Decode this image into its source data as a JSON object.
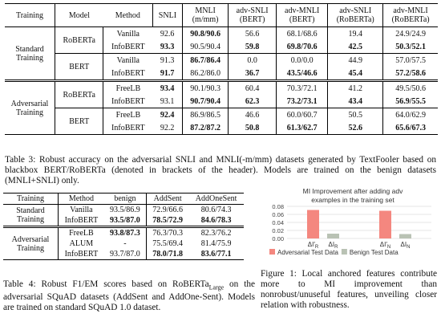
{
  "table3": {
    "headers": [
      [
        "Training"
      ],
      [
        "Model"
      ],
      [
        "Method"
      ],
      [
        "SNLI"
      ],
      [
        "MNLI",
        "(m/mm)"
      ],
      [
        "adv-SNLI",
        "(BERT)"
      ],
      [
        "adv-MNLI",
        "(BERT)"
      ],
      [
        "adv-SNLI",
        "(RoBERTa)"
      ],
      [
        "adv-MNLI",
        "(RoBERTa)"
      ]
    ],
    "groups": [
      {
        "training": "Standard Training",
        "subgroups": [
          {
            "model": "RoBERTa",
            "rows": [
              {
                "cells": [
                  "Vanilla",
                  "92.6",
                  "90.8/90.6",
                  "56.6",
                  "68.1/68.6",
                  "19.4",
                  "24.9/24.9"
                ],
                "bold": [
                  2
                ]
              },
              {
                "cells": [
                  "InfoBERT",
                  "93.3",
                  "90.5/90.4",
                  "59.8",
                  "69.8/70.6",
                  "42.5",
                  "50.3/52.1"
                ],
                "bold": [
                  1,
                  3,
                  4,
                  5,
                  6
                ]
              }
            ]
          },
          {
            "model": "BERT",
            "rows": [
              {
                "cells": [
                  "Vanilla",
                  "91.3",
                  "86.7/86.4",
                  "0.0",
                  "0.0/0.0",
                  "44.9",
                  "57.0/57.5"
                ],
                "bold": [
                  2
                ]
              },
              {
                "cells": [
                  "InfoBERT",
                  "91.7",
                  "86.2/86.0",
                  "36.7",
                  "43.5/46.6",
                  "45.4",
                  "57.2/58.6"
                ],
                "bold": [
                  1,
                  3,
                  4,
                  5,
                  6
                ]
              }
            ]
          }
        ]
      },
      {
        "training": "Adversarial Training",
        "subgroups": [
          {
            "model": "RoBERTa",
            "rows": [
              {
                "cells": [
                  "FreeLB",
                  "93.4",
                  "90.1/90.3",
                  "60.4",
                  "70.3/72.1",
                  "41.2",
                  "49.5/50.6"
                ],
                "bold": [
                  1
                ]
              },
              {
                "cells": [
                  "InfoBERT",
                  "93.1",
                  "90.7/90.4",
                  "62.3",
                  "73.2/73.1",
                  "43.4",
                  "56.9/55.5"
                ],
                "bold": [
                  2,
                  3,
                  4,
                  5,
                  6
                ]
              }
            ]
          },
          {
            "model": "BERT",
            "rows": [
              {
                "cells": [
                  "FreeLB",
                  "92.4",
                  "86.9/86.5",
                  "46.6",
                  "60.0/60.7",
                  "50.5",
                  "64.0/62.9"
                ],
                "bold": [
                  1
                ]
              },
              {
                "cells": [
                  "InfoBERT",
                  "92.2",
                  "87.2/87.2",
                  "50.8",
                  "61.3/62.7",
                  "52.6",
                  "65.6/67.3"
                ],
                "bold": [
                  2,
                  3,
                  4,
                  5,
                  6
                ]
              }
            ]
          }
        ]
      }
    ]
  },
  "caption3": "Table 3: Robust accuracy on the adversarial SNLI and MNLI(-m/mm) datasets generated by TextFooler based on blackbox BERT/RoBERTa (denoted in brackets of the header). Models are trained on the benign datasets (MNLI+SNLI) only.",
  "table4": {
    "headers": [
      "Training",
      "Method",
      "benign",
      "AddSent",
      "AddOneSent"
    ],
    "groups": [
      {
        "training": "Standard Training",
        "rows": [
          {
            "cells": [
              "Vanilla",
              "93.5/86.9",
              "72.9/66.6",
              "80.6/74.3"
            ],
            "bold": []
          },
          {
            "cells": [
              "InfoBERT",
              "93.5/87.0",
              "78.5/72.9",
              "84.6/78.3"
            ],
            "bold": [
              1,
              2,
              3
            ]
          }
        ]
      },
      {
        "training": "Adversarial Training",
        "rows": [
          {
            "cells": [
              "FreeLB",
              "93.8/87.3",
              "76.3/70.3",
              "82.3/76.2"
            ],
            "bold": [
              1
            ]
          },
          {
            "cells": [
              "ALUM",
              "-",
              "75.5/69.4",
              "81.4/75.9"
            ],
            "bold": []
          },
          {
            "cells": [
              "InfoBERT",
              "93.7/87.0",
              "78.0/71.8",
              "83.6/77.1"
            ],
            "bold": [
              2,
              3
            ]
          }
        ]
      }
    ]
  },
  "caption4": {
    "before": "Table 4: Robust F1/EM scores based on RoBERTa",
    "sub": "Large",
    "after": " on the adversarial SQuAD datasets (AddSent and AddOne-Sent). Models are trained on standard SQuAD 1.0 dataset."
  },
  "chart_data": {
    "type": "bar",
    "title": [
      "MI Improvement after adding adv",
      "examples in the training set"
    ],
    "series": [
      {
        "name": "Adversarial Test Data",
        "color": "#f4877f",
        "values": [
          0.071,
          0.069
        ],
        "labels": [
          {
            "base": "ΔI′",
            "sub": "R"
          },
          {
            "base": "ΔI′",
            "sub": "N"
          }
        ]
      },
      {
        "name": "Benign Test Data",
        "color": "#b9c2b4",
        "values": [
          0.012,
          0.011
        ],
        "labels": [
          {
            "base": "ΔI",
            "sub": "R"
          },
          {
            "base": "ΔI",
            "sub": "N"
          }
        ]
      }
    ],
    "ylim": [
      0,
      0.08
    ],
    "yticks": [
      {
        "value": 0,
        "label": "0.00"
      },
      {
        "value": 0.02,
        "label": "0.02"
      },
      {
        "value": 0.04,
        "label": "0.04"
      },
      {
        "value": 0.06,
        "label": "0.06"
      },
      {
        "value": 0.08,
        "label": "0.08"
      }
    ],
    "grid": true
  },
  "figcaption": "Figure 1: Local anchored features contribute more to MI improvement than nonrobust/unuseful features, unveiling closer relation with robustness."
}
